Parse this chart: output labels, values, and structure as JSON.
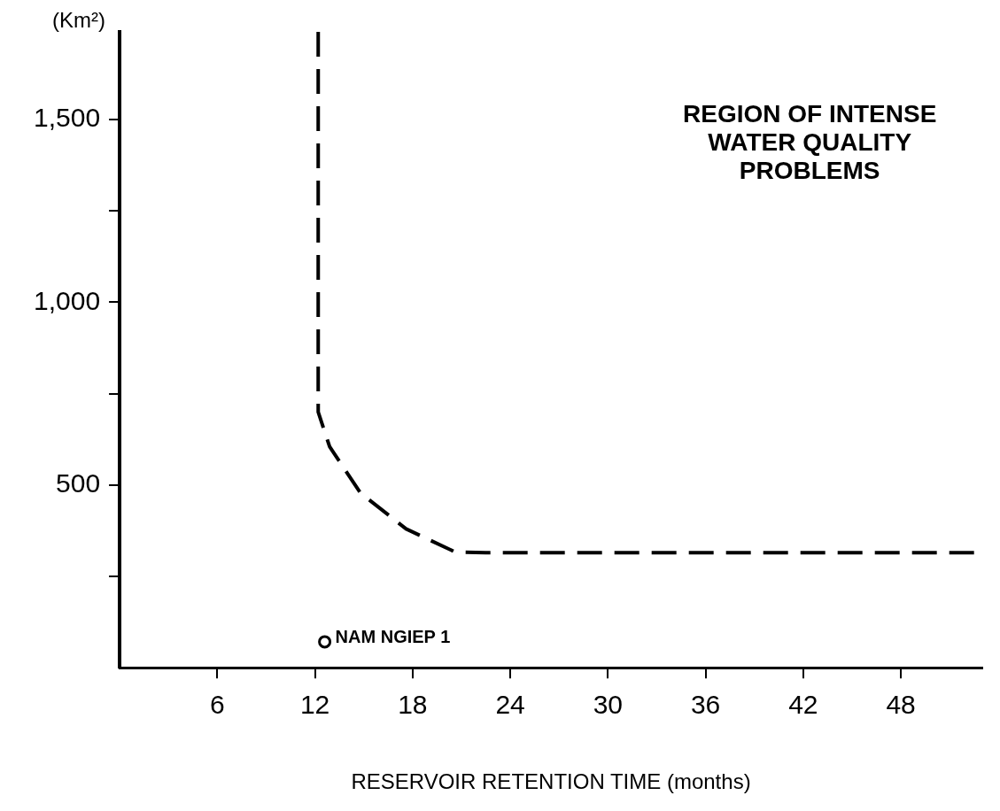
{
  "chart_data": {
    "type": "line",
    "xlabel": "RESERVOIR RETENTION TIME (months)",
    "ylabel": "(Km²)",
    "annotations": [
      "REGION OF INTENSE WATER QUALITY PROBLEMS"
    ],
    "xlim": [
      0,
      53
    ],
    "xticks": [
      6,
      12,
      18,
      24,
      30,
      36,
      42,
      48
    ],
    "ylim": [
      0,
      1740
    ],
    "yticks": [
      {
        "value": 250,
        "label": null
      },
      {
        "value": 500,
        "label": "500"
      },
      {
        "value": 750,
        "label": null
      },
      {
        "value": 1000,
        "label": "1,000"
      },
      {
        "value": 1250,
        "label": null
      },
      {
        "value": 1500,
        "label": "1,500"
      }
    ],
    "grid": false,
    "legend": false,
    "series": [
      {
        "type": "line",
        "line_style": "dashed",
        "marker": "none",
        "color": "#000000",
        "x": [
          12.2,
          12.2,
          12.9,
          14.8,
          17.6,
          20.6,
          22.5,
          53
        ],
        "values": [
          1740,
          700,
          605,
          478,
          380,
          317,
          315,
          315
        ]
      },
      {
        "type": "scatter",
        "marker": "circle",
        "name": "NAM NGIEP 1",
        "color": "#000000",
        "x": [
          12.6
        ],
        "values": [
          71
        ]
      }
    ]
  }
}
